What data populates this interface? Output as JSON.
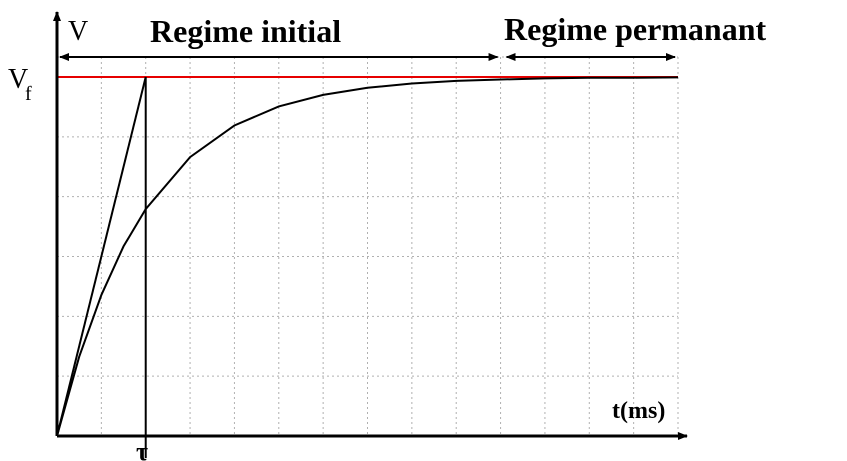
{
  "chart_data": {
    "type": "line",
    "title": "",
    "ylabel": "V",
    "xlabel": "t(ms)",
    "final_value_label": "V",
    "final_value_subscript": "f",
    "tau_label": "τ",
    "tau_value": 1,
    "x_range": [
      0,
      7
    ],
    "y_range": [
      0,
      1.05
    ],
    "final_value": 1.0,
    "grid": true,
    "regions": [
      {
        "label": "Regime initial",
        "x_start": 0,
        "x_end": 5
      },
      {
        "label": "Regime permanant",
        "x_start": 5,
        "x_end": 7
      }
    ],
    "series": [
      {
        "x": [
          0,
          0.25,
          0.5,
          0.75,
          1,
          1.5,
          2,
          2.5,
          3,
          3.5,
          4,
          4.5,
          5,
          5.5,
          6,
          6.5,
          7
        ],
        "values": [
          0,
          0.221,
          0.393,
          0.528,
          0.632,
          0.777,
          0.865,
          0.918,
          0.95,
          0.97,
          0.982,
          0.989,
          0.993,
          0.996,
          0.998,
          0.998,
          0.999
        ]
      }
    ],
    "tangent_line": {
      "x": [
        0,
        1
      ],
      "values": [
        0,
        1.0
      ]
    },
    "reference_line": {
      "value": 1.0,
      "color": "#e60000"
    },
    "colors": {
      "curve": "#000000",
      "grid": "#b0b0b0",
      "axis": "#000000",
      "reference": "#e60000"
    }
  }
}
